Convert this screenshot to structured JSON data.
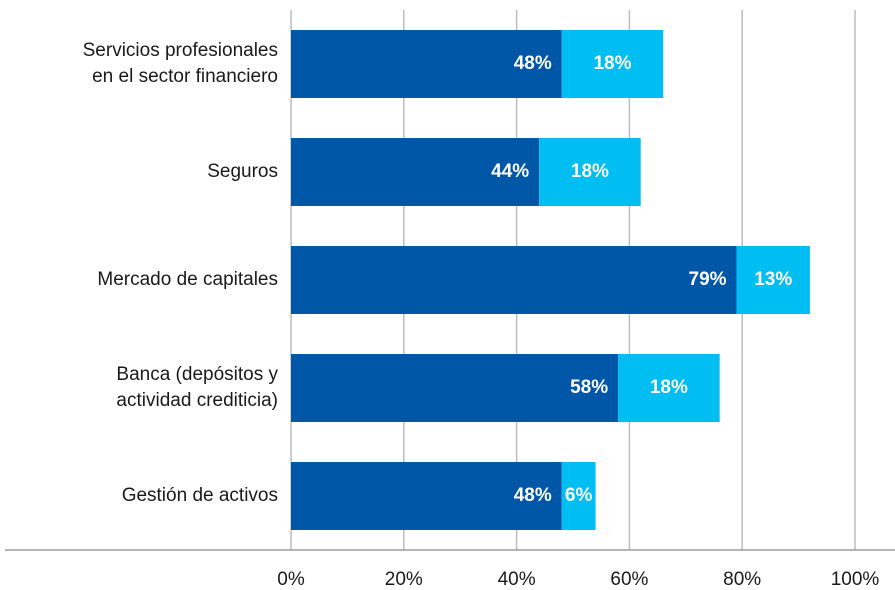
{
  "chart_data": {
    "type": "stacked_barh",
    "categories": [
      "Servicios profesionales en el sector financiero",
      "Seguros",
      "Mercado de capitales",
      "Banca (depósitos y actividad crediticia)",
      "Gestión de activos"
    ],
    "series": [
      {
        "color": "#0057a8",
        "values": [
          48,
          44,
          79,
          58,
          48
        ],
        "value_labels": [
          "48%",
          "44%",
          "79%",
          "58%",
          "48%"
        ]
      },
      {
        "color": "#00bdf2",
        "values": [
          18,
          18,
          13,
          18,
          6
        ],
        "value_labels": [
          "18%",
          "18%",
          "13%",
          "18%",
          "6%"
        ]
      }
    ],
    "xlim": [
      0,
      100
    ],
    "xticks": [
      {
        "value": 0,
        "label": "0%"
      },
      {
        "value": 20,
        "label": "20%"
      },
      {
        "value": 40,
        "label": "40%"
      },
      {
        "value": 60,
        "label": "60%"
      },
      {
        "value": 80,
        "label": "80%"
      },
      {
        "value": 100,
        "label": "100%"
      }
    ],
    "grid": true
  }
}
